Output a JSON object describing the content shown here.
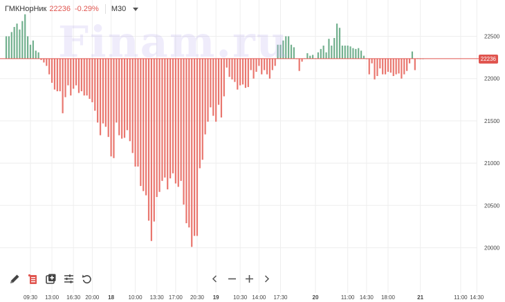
{
  "header": {
    "ticker": "ГМКНорНик",
    "price": "22236",
    "change": "-0.29%",
    "timeframe": "M30"
  },
  "watermark": "Finam.ru",
  "current_price_tag": "22236",
  "toolbar": {
    "icons": [
      "pencil-icon",
      "document-alert-icon",
      "add-panel-icon",
      "sliders-icon",
      "undo-icon"
    ]
  },
  "navigation": {
    "icons": [
      "chevron-left-icon",
      "zoom-out-icon",
      "zoom-in-icon",
      "chevron-right-icon"
    ]
  },
  "colors": {
    "up": "#72b08e",
    "down": "#e9766e",
    "baseline": "#e0554f",
    "grid": "#eeeeee",
    "axis_text": "#444444"
  },
  "chart_data": {
    "type": "bar",
    "title": "",
    "baseline": 22236,
    "ylim": [
      19500,
      22750
    ],
    "yticks": [
      20000,
      20500,
      21000,
      21500,
      22000,
      22500
    ],
    "grid": true,
    "x_tick_labels": [
      "09:30",
      "13:00",
      "16:30",
      "20:00",
      "18",
      "10:00",
      "13:30",
      "17:00",
      "20:30",
      "19",
      "10:30",
      "14:00",
      "17:30",
      "20",
      "11:00",
      "14:30",
      "18:00",
      "21",
      "11:00",
      "14:30"
    ],
    "x_tick_bold": [
      false,
      false,
      false,
      false,
      true,
      false,
      false,
      false,
      false,
      true,
      false,
      false,
      false,
      true,
      false,
      false,
      false,
      true,
      false,
      false
    ],
    "x_tick_index": [
      9,
      17,
      25,
      32,
      39,
      48,
      56,
      63,
      71,
      78,
      87,
      94,
      102,
      115,
      127,
      134,
      142,
      154,
      169,
      175
    ],
    "values": [
      22500,
      22500,
      22550,
      22610,
      22650,
      22580,
      22680,
      22760,
      22500,
      22400,
      22450,
      22330,
      22310,
      22220,
      22190,
      22150,
      22050,
      21950,
      21870,
      21850,
      21850,
      21590,
      21780,
      21920,
      21800,
      21880,
      21920,
      21830,
      21850,
      21800,
      21800,
      21760,
      21720,
      21620,
      21480,
      21330,
      21470,
      21430,
      21310,
      21080,
      21060,
      21480,
      21330,
      21290,
      21300,
      21390,
      21260,
      21120,
      20960,
      20960,
      20730,
      20670,
      20620,
      20320,
      20080,
      20310,
      20600,
      20660,
      20790,
      20830,
      20690,
      20820,
      20880,
      20760,
      20720,
      20790,
      20510,
      20290,
      20240,
      20010,
      20140,
      20140,
      20940,
      21040,
      21340,
      21490,
      21660,
      21560,
      21490,
      21690,
      21540,
      21790,
      22130,
      22020,
      21990,
      21960,
      21870,
      21920,
      21930,
      21890,
      21900,
      22100,
      22000,
      22080,
      22150,
      22050,
      22100,
      22050,
      22000,
      22100,
      22150,
      22400,
      22400,
      22450,
      22500,
      22500,
      22400,
      22370,
      22230,
      22090,
      22200,
      22240,
      22300,
      22270,
      22280,
      22240,
      22310,
      22350,
      22390,
      22310,
      22470,
      22390,
      22480,
      22650,
      22600,
      22390,
      22390,
      22390,
      22380,
      22360,
      22350,
      22360,
      22330,
      22270,
      22230,
      22050,
      22180,
      21990,
      22030,
      22120,
      22050,
      22050,
      22080,
      22070,
      22030,
      22050,
      22060,
      22000,
      22050,
      22090,
      22180,
      22320,
      22100,
      22240,
      22230,
      22236
    ]
  }
}
